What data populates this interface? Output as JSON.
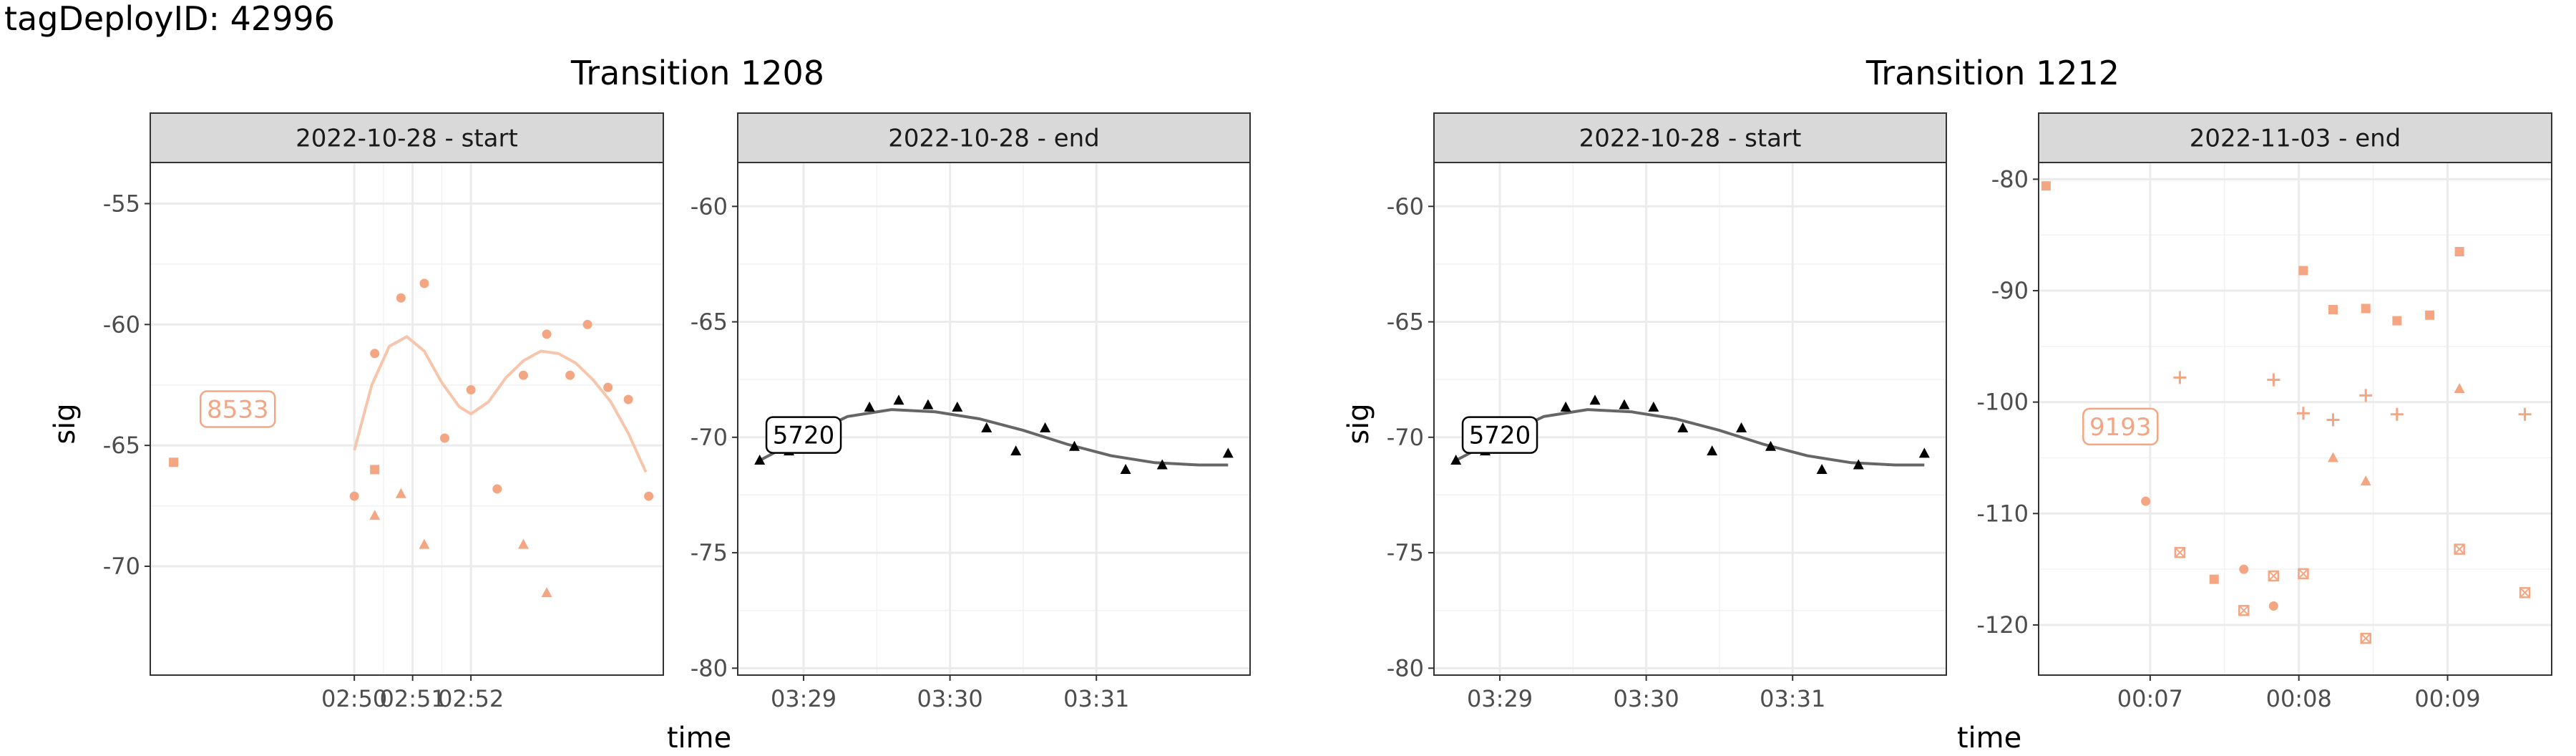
{
  "page_title": "tagDeployID: 42996",
  "x_axis_label": "time",
  "y_axis_label": "sig",
  "colors": {
    "orange": "#f4a582",
    "orange_line": "#f7c5ab",
    "black": "#000000",
    "grey_line": "#666666",
    "strip_bg": "#d9d9d9",
    "grid": "#ebebeb"
  },
  "chart_data": [
    {
      "type": "scatter",
      "title": "Transition 1208",
      "panels": [
        {
          "strip": "2022-10-28 - start",
          "color": "#f4a582",
          "xlim": [
            171.5,
            180.3
          ],
          "ylim": [
            -74.5,
            -53.3
          ],
          "x_ticks": [
            {
              "v": 175,
              "label": "02:50"
            },
            {
              "v": 176,
              "label": "02:51"
            },
            {
              "v": 177,
              "label": "02:52"
            }
          ],
          "y_ticks": [
            {
              "v": -55,
              "label": "-55"
            },
            {
              "v": -60,
              "label": "-60"
            },
            {
              "v": -65,
              "label": "-65"
            },
            {
              "v": -70,
              "label": "-70"
            }
          ],
          "tag_label": {
            "text": "8533",
            "x": 173.0,
            "y": -63.5
          },
          "points": [
            {
              "x": 171.9,
              "y": -65.7,
              "shape": "square"
            },
            {
              "x": 175.0,
              "y": -67.1,
              "shape": "circle"
            },
            {
              "x": 175.35,
              "y": -61.2,
              "shape": "circle"
            },
            {
              "x": 175.35,
              "y": -66.0,
              "shape": "square"
            },
            {
              "x": 175.35,
              "y": -67.9,
              "shape": "triangle"
            },
            {
              "x": 175.8,
              "y": -58.9,
              "shape": "circle"
            },
            {
              "x": 175.8,
              "y": -67.0,
              "shape": "triangle"
            },
            {
              "x": 176.2,
              "y": -58.3,
              "shape": "circle"
            },
            {
              "x": 176.2,
              "y": -69.1,
              "shape": "triangle"
            },
            {
              "x": 176.55,
              "y": -64.7,
              "shape": "circle"
            },
            {
              "x": 177.0,
              "y": -62.7,
              "shape": "circle"
            },
            {
              "x": 177.45,
              "y": -66.8,
              "shape": "circle"
            },
            {
              "x": 177.9,
              "y": -62.1,
              "shape": "circle"
            },
            {
              "x": 177.9,
              "y": -69.1,
              "shape": "triangle"
            },
            {
              "x": 178.3,
              "y": -60.4,
              "shape": "circle"
            },
            {
              "x": 178.3,
              "y": -71.1,
              "shape": "triangle"
            },
            {
              "x": 178.7,
              "y": -62.1,
              "shape": "circle"
            },
            {
              "x": 179.0,
              "y": -60.0,
              "shape": "circle"
            },
            {
              "x": 179.35,
              "y": -62.6,
              "shape": "circle"
            },
            {
              "x": 179.7,
              "y": -63.1,
              "shape": "circle"
            },
            {
              "x": 180.05,
              "y": -67.1,
              "shape": "circle"
            }
          ],
          "smooth": [
            [
              175.0,
              -65.2
            ],
            [
              175.3,
              -62.5
            ],
            [
              175.6,
              -60.9
            ],
            [
              175.9,
              -60.5
            ],
            [
              176.2,
              -61.1
            ],
            [
              176.5,
              -62.4
            ],
            [
              176.8,
              -63.4
            ],
            [
              177.0,
              -63.7
            ],
            [
              177.3,
              -63.2
            ],
            [
              177.6,
              -62.2
            ],
            [
              177.9,
              -61.5
            ],
            [
              178.2,
              -61.1
            ],
            [
              178.5,
              -61.2
            ],
            [
              178.8,
              -61.6
            ],
            [
              179.1,
              -62.3
            ],
            [
              179.4,
              -63.2
            ],
            [
              179.7,
              -64.5
            ],
            [
              180.0,
              -66.1
            ]
          ]
        },
        {
          "strip": "2022-10-28 - end",
          "color": "#000000",
          "xlim": [
            208.55,
            212.05
          ],
          "ylim": [
            -80.3,
            -58.1
          ],
          "x_ticks": [
            {
              "v": 209,
              "label": "03:29"
            },
            {
              "v": 210,
              "label": "03:30"
            },
            {
              "v": 211,
              "label": "03:31"
            }
          ],
          "y_ticks": [
            {
              "v": -60,
              "label": "-60"
            },
            {
              "v": -65,
              "label": "-65"
            },
            {
              "v": -70,
              "label": "-70"
            },
            {
              "v": -75,
              "label": "-75"
            },
            {
              "v": -80,
              "label": "-80"
            }
          ],
          "tag_label": {
            "text": "5720",
            "x": 209.0,
            "y": -69.9
          },
          "points": [
            {
              "x": 208.7,
              "y": -71.0,
              "shape": "triangle"
            },
            {
              "x": 208.9,
              "y": -70.6,
              "shape": "triangle"
            },
            {
              "x": 209.45,
              "y": -68.7,
              "shape": "triangle"
            },
            {
              "x": 209.65,
              "y": -68.4,
              "shape": "triangle"
            },
            {
              "x": 209.85,
              "y": -68.6,
              "shape": "triangle"
            },
            {
              "x": 210.05,
              "y": -68.7,
              "shape": "triangle"
            },
            {
              "x": 210.25,
              "y": -69.6,
              "shape": "triangle"
            },
            {
              "x": 210.45,
              "y": -70.6,
              "shape": "triangle"
            },
            {
              "x": 210.65,
              "y": -69.6,
              "shape": "triangle"
            },
            {
              "x": 210.85,
              "y": -70.4,
              "shape": "triangle"
            },
            {
              "x": 211.2,
              "y": -71.4,
              "shape": "triangle"
            },
            {
              "x": 211.45,
              "y": -71.2,
              "shape": "triangle"
            },
            {
              "x": 211.9,
              "y": -70.7,
              "shape": "triangle"
            }
          ],
          "smooth": [
            [
              208.7,
              -71.0
            ],
            [
              209.0,
              -70.0
            ],
            [
              209.3,
              -69.1
            ],
            [
              209.6,
              -68.8
            ],
            [
              209.9,
              -68.9
            ],
            [
              210.2,
              -69.2
            ],
            [
              210.5,
              -69.7
            ],
            [
              210.8,
              -70.3
            ],
            [
              211.1,
              -70.8
            ],
            [
              211.4,
              -71.1
            ],
            [
              211.7,
              -71.2
            ],
            [
              211.9,
              -71.2
            ]
          ]
        }
      ]
    },
    {
      "type": "scatter",
      "title": "Transition 1212",
      "panels": [
        {
          "strip": "2022-10-28 - start",
          "color": "#000000",
          "xlim": [
            208.55,
            212.05
          ],
          "ylim": [
            -80.3,
            -58.1
          ],
          "x_ticks": [
            {
              "v": 209,
              "label": "03:29"
            },
            {
              "v": 210,
              "label": "03:30"
            },
            {
              "v": 211,
              "label": "03:31"
            }
          ],
          "y_ticks": [
            {
              "v": -60,
              "label": "-60"
            },
            {
              "v": -65,
              "label": "-65"
            },
            {
              "v": -70,
              "label": "-70"
            },
            {
              "v": -75,
              "label": "-75"
            },
            {
              "v": -80,
              "label": "-80"
            }
          ],
          "tag_label": {
            "text": "5720",
            "x": 209.0,
            "y": -69.9
          },
          "points": [
            {
              "x": 208.7,
              "y": -71.0,
              "shape": "triangle"
            },
            {
              "x": 208.9,
              "y": -70.6,
              "shape": "triangle"
            },
            {
              "x": 209.45,
              "y": -68.7,
              "shape": "triangle"
            },
            {
              "x": 209.65,
              "y": -68.4,
              "shape": "triangle"
            },
            {
              "x": 209.85,
              "y": -68.6,
              "shape": "triangle"
            },
            {
              "x": 210.05,
              "y": -68.7,
              "shape": "triangle"
            },
            {
              "x": 210.25,
              "y": -69.6,
              "shape": "triangle"
            },
            {
              "x": 210.45,
              "y": -70.6,
              "shape": "triangle"
            },
            {
              "x": 210.65,
              "y": -69.6,
              "shape": "triangle"
            },
            {
              "x": 210.85,
              "y": -70.4,
              "shape": "triangle"
            },
            {
              "x": 211.2,
              "y": -71.4,
              "shape": "triangle"
            },
            {
              "x": 211.45,
              "y": -71.2,
              "shape": "triangle"
            },
            {
              "x": 211.9,
              "y": -70.7,
              "shape": "triangle"
            }
          ],
          "smooth": [
            [
              208.7,
              -71.0
            ],
            [
              209.0,
              -70.0
            ],
            [
              209.3,
              -69.1
            ],
            [
              209.6,
              -68.8
            ],
            [
              209.9,
              -68.9
            ],
            [
              210.2,
              -69.2
            ],
            [
              210.5,
              -69.7
            ],
            [
              210.8,
              -70.3
            ],
            [
              211.1,
              -70.8
            ],
            [
              211.4,
              -71.1
            ],
            [
              211.7,
              -71.2
            ],
            [
              211.9,
              -71.2
            ]
          ]
        },
        {
          "strip": "2022-11-03 - end",
          "color": "#f4a582",
          "xlim": [
            6.25,
            9.7
          ],
          "ylim": [
            -124.5,
            -78.5
          ],
          "x_ticks": [
            {
              "v": 7,
              "label": "00:07"
            },
            {
              "v": 8,
              "label": "00:08"
            },
            {
              "v": 9,
              "label": "00:09"
            }
          ],
          "y_ticks": [
            {
              "v": -80,
              "label": "-80"
            },
            {
              "v": -90,
              "label": "-90"
            },
            {
              "v": -100,
              "label": "-100"
            },
            {
              "v": -110,
              "label": "-110"
            },
            {
              "v": -120,
              "label": "-120"
            }
          ],
          "tag_label": {
            "text": "9193",
            "x": 6.8,
            "y": -102.2
          },
          "points": [
            {
              "x": 6.3,
              "y": -80.6,
              "shape": "square"
            },
            {
              "x": 6.97,
              "y": -108.9,
              "shape": "circle"
            },
            {
              "x": 7.2,
              "y": -97.8,
              "shape": "plus"
            },
            {
              "x": 7.2,
              "y": -113.5,
              "shape": "boxx"
            },
            {
              "x": 7.43,
              "y": -115.9,
              "shape": "square"
            },
            {
              "x": 7.63,
              "y": -115.0,
              "shape": "circle"
            },
            {
              "x": 7.63,
              "y": -118.7,
              "shape": "boxx"
            },
            {
              "x": 7.83,
              "y": -98.0,
              "shape": "plus"
            },
            {
              "x": 7.83,
              "y": -115.6,
              "shape": "boxx"
            },
            {
              "x": 7.83,
              "y": -118.3,
              "shape": "circle"
            },
            {
              "x": 8.03,
              "y": -88.2,
              "shape": "square"
            },
            {
              "x": 8.03,
              "y": -101.0,
              "shape": "plus"
            },
            {
              "x": 8.03,
              "y": -115.4,
              "shape": "boxx"
            },
            {
              "x": 8.23,
              "y": -91.7,
              "shape": "square"
            },
            {
              "x": 8.23,
              "y": -101.6,
              "shape": "plus"
            },
            {
              "x": 8.23,
              "y": -105.0,
              "shape": "triangle"
            },
            {
              "x": 8.45,
              "y": -91.6,
              "shape": "square"
            },
            {
              "x": 8.45,
              "y": -99.4,
              "shape": "plus"
            },
            {
              "x": 8.45,
              "y": -107.1,
              "shape": "triangle"
            },
            {
              "x": 8.45,
              "y": -121.2,
              "shape": "boxx"
            },
            {
              "x": 8.66,
              "y": -92.7,
              "shape": "square"
            },
            {
              "x": 8.66,
              "y": -101.1,
              "shape": "plus"
            },
            {
              "x": 8.88,
              "y": -92.2,
              "shape": "square"
            },
            {
              "x": 9.08,
              "y": -86.5,
              "shape": "square"
            },
            {
              "x": 9.08,
              "y": -98.8,
              "shape": "triangle"
            },
            {
              "x": 9.08,
              "y": -113.2,
              "shape": "boxx"
            },
            {
              "x": 9.52,
              "y": -101.1,
              "shape": "plus"
            },
            {
              "x": 9.52,
              "y": -117.1,
              "shape": "boxx"
            }
          ],
          "smooth": []
        }
      ]
    }
  ]
}
